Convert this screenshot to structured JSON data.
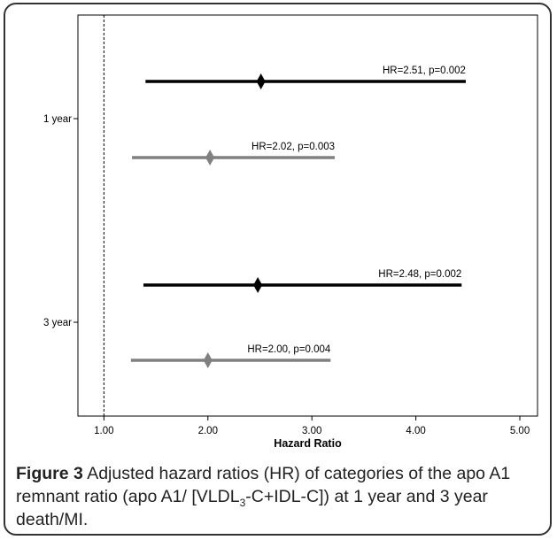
{
  "chart_data": {
    "type": "forest",
    "xlabel": "Hazard Ratio",
    "xlim": [
      0.75,
      5.17
    ],
    "x_ticks": [
      "1.00",
      "2.00",
      "3.00",
      "4.00",
      "5.00"
    ],
    "reference_line": 1.0,
    "grid": false,
    "y_categories": [
      "1 year",
      "3 year"
    ],
    "series": [
      {
        "group": "1 year",
        "hr": 2.51,
        "ci_low": 1.4,
        "ci_high": 4.48,
        "label": "HR=2.51, p=0.002",
        "color": "#000000"
      },
      {
        "group": "1 year",
        "hr": 2.02,
        "ci_low": 1.27,
        "ci_high": 3.22,
        "label": "HR=2.02, p=0.003",
        "color": "#808080"
      },
      {
        "group": "3 year",
        "hr": 2.48,
        "ci_low": 1.38,
        "ci_high": 4.44,
        "label": "HR=2.48, p=0.002",
        "color": "#000000"
      },
      {
        "group": "3 year",
        "hr": 2.0,
        "ci_low": 1.26,
        "ci_high": 3.18,
        "label": "HR=2.00, p=0.004",
        "color": "#808080"
      }
    ]
  },
  "caption": {
    "figure_label": "Figure 3",
    "text_before_sub": "Adjusted hazard ratios (HR) of categories of the apo A1 remnant ratio (apo A1/ [VLDL",
    "subscript": "3",
    "text_after_sub": "-C+IDL-C]) at 1 year and 3 year death/MI."
  }
}
